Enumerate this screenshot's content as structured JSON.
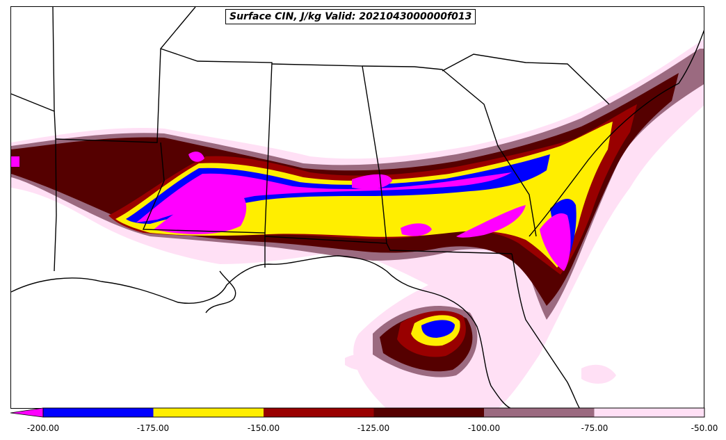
{
  "title": "Surface CIN, J/kg Valid: 2021043000000f013",
  "colorbar": {
    "ticks": [
      "-200.00",
      "-175.00",
      "-150.00",
      "-125.00",
      "-100.00",
      "-75.00",
      "-50.00"
    ],
    "bins": [
      {
        "from": -200,
        "to": -175,
        "color": "#0000ff"
      },
      {
        "from": -175,
        "to": -150,
        "color": "#ffee00"
      },
      {
        "from": -150,
        "to": -125,
        "color": "#990000"
      },
      {
        "from": -125,
        "to": -100,
        "color": "#550000"
      },
      {
        "from": -100,
        "to": -75,
        "color": "#9b6a80"
      },
      {
        "from": -75,
        "to": -50,
        "color": "#ffe0f5"
      }
    ],
    "under_color": "#ff00ff",
    "extend": "min"
  },
  "colors": {
    "magenta": "#ff00ff",
    "blue": "#0000ff",
    "yellow": "#ffee00",
    "dark_red": "#990000",
    "maroon": "#550000",
    "mauve": "#9b6a80",
    "pale_pink": "#ffe0f5",
    "boundary": "#000000"
  }
}
